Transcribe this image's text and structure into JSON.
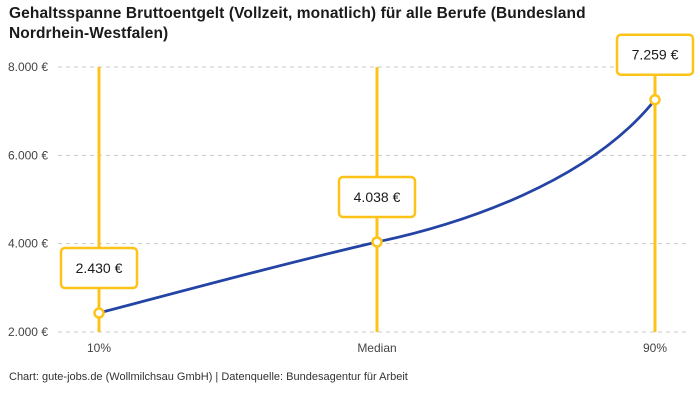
{
  "title": "Gehaltsspanne Bruttoentgelt (Vollzeit, monatlich) für alle Berufe (Bundesland Nordrhein-Westfalen)",
  "footer": "Chart: gute-jobs.de (Wollmilchsau GmbH) | Datenquelle: Bundesagentur für Arbeit",
  "chart_data": {
    "type": "line",
    "title": "Gehaltsspanne Bruttoentgelt (Vollzeit, monatlich) für alle Berufe (Bundesland Nordrhein-Westfalen)",
    "categories": [
      "10%",
      "Median",
      "90%"
    ],
    "values": [
      2430,
      4038,
      7259
    ],
    "point_labels": [
      "2.430 €",
      "4.038 €",
      "7.259 €"
    ],
    "y_ticks": [
      {
        "value": 2000,
        "label": "2.000 €"
      },
      {
        "value": 4000,
        "label": "4.000 €"
      },
      {
        "value": 6000,
        "label": "6.000 €"
      },
      {
        "value": 8000,
        "label": "8.000 €"
      }
    ],
    "ylim": [
      2000,
      8000
    ],
    "xlabel": "",
    "ylabel": "",
    "grid": "horizontal-dashed",
    "curve": "smooth",
    "legend": "none",
    "colors": {
      "line": "#2444A5",
      "marker": "#FDC319",
      "grid": "#C9C9C9",
      "text": "#444444",
      "background": "#FFFFFF"
    }
  }
}
